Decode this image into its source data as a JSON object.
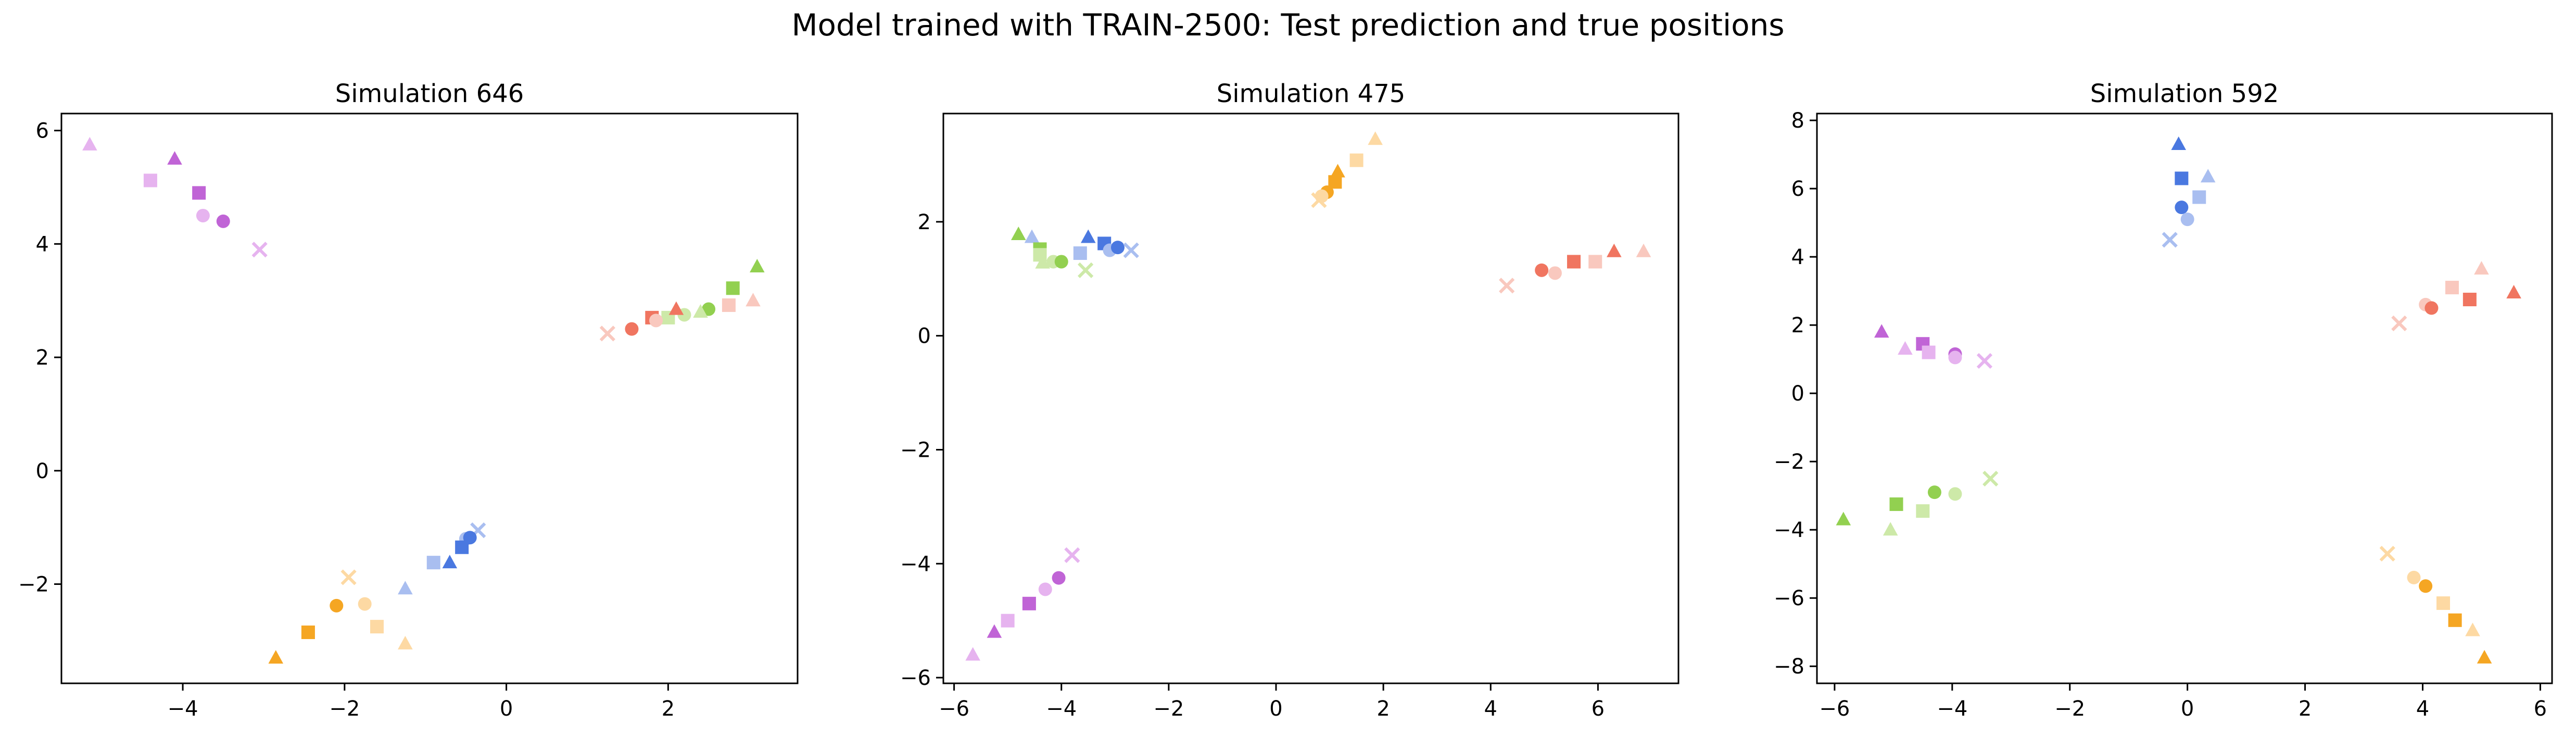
{
  "suptitle": "Model trained with TRAIN-2500: Test prediction and true positions",
  "colors": {
    "orange": {
      "dark": "#f5a623",
      "light": "#fdd9a3"
    },
    "blue": {
      "dark": "#4a78e0",
      "light": "#a9bef0"
    },
    "purple": {
      "dark": "#c064d6",
      "light": "#e6b3ef"
    },
    "green": {
      "dark": "#92d050",
      "light": "#cde9a8"
    },
    "red": {
      "dark": "#f07560",
      "light": "#f9c8be"
    }
  },
  "chart_data": [
    {
      "type": "scatter",
      "title": "Simulation 646",
      "xlim": [
        -5.5,
        3.6
      ],
      "ylim": [
        -3.75,
        6.3
      ],
      "xticks": [
        -4,
        -2,
        0,
        2
      ],
      "yticks": [
        -2,
        0,
        2,
        4,
        6
      ],
      "series": [
        {
          "color": "orange",
          "points": [
            {
              "m": "x",
              "s": "light",
              "x": -1.95,
              "y": -1.88
            },
            {
              "m": "o",
              "s": "light",
              "x": -1.75,
              "y": -2.35
            },
            {
              "m": "o",
              "s": "dark",
              "x": -2.1,
              "y": -2.38
            },
            {
              "m": "s",
              "s": "light",
              "x": -1.6,
              "y": -2.75
            },
            {
              "m": "s",
              "s": "dark",
              "x": -2.45,
              "y": -2.85
            },
            {
              "m": "^",
              "s": "light",
              "x": -1.25,
              "y": -3.05
            },
            {
              "m": "^",
              "s": "dark",
              "x": -2.85,
              "y": -3.3
            }
          ]
        },
        {
          "color": "blue",
          "points": [
            {
              "m": "x",
              "s": "light",
              "x": -0.35,
              "y": -1.05
            },
            {
              "m": "o",
              "s": "light",
              "x": -0.5,
              "y": -1.2
            },
            {
              "m": "o",
              "s": "dark",
              "x": -0.45,
              "y": -1.18
            },
            {
              "m": "s",
              "s": "dark",
              "x": -0.55,
              "y": -1.35
            },
            {
              "m": "s",
              "s": "light",
              "x": -0.9,
              "y": -1.62
            },
            {
              "m": "^",
              "s": "dark",
              "x": -0.7,
              "y": -1.62
            },
            {
              "m": "^",
              "s": "light",
              "x": -1.25,
              "y": -2.08
            }
          ]
        },
        {
          "color": "purple",
          "points": [
            {
              "m": "^",
              "s": "light",
              "x": -5.15,
              "y": 5.75
            },
            {
              "m": "^",
              "s": "dark",
              "x": -4.1,
              "y": 5.5
            },
            {
              "m": "s",
              "s": "light",
              "x": -4.4,
              "y": 5.12
            },
            {
              "m": "s",
              "s": "dark",
              "x": -3.8,
              "y": 4.9
            },
            {
              "m": "o",
              "s": "light",
              "x": -3.75,
              "y": 4.5
            },
            {
              "m": "o",
              "s": "dark",
              "x": -3.5,
              "y": 4.4
            },
            {
              "m": "x",
              "s": "light",
              "x": -3.05,
              "y": 3.9
            }
          ]
        },
        {
          "color": "green",
          "points": [
            {
              "m": "^",
              "s": "dark",
              "x": 3.1,
              "y": 3.6
            },
            {
              "m": "s",
              "s": "dark",
              "x": 2.8,
              "y": 3.22
            },
            {
              "m": "o",
              "s": "dark",
              "x": 2.5,
              "y": 2.85
            },
            {
              "m": "^",
              "s": "light",
              "x": 2.4,
              "y": 2.8
            },
            {
              "m": "o",
              "s": "light",
              "x": 2.2,
              "y": 2.75
            },
            {
              "m": "s",
              "s": "light",
              "x": 2.0,
              "y": 2.7
            }
          ]
        },
        {
          "color": "red",
          "points": [
            {
              "m": "^",
              "s": "light",
              "x": 3.05,
              "y": 3.0
            },
            {
              "m": "s",
              "s": "light",
              "x": 2.75,
              "y": 2.92
            },
            {
              "m": "^",
              "s": "dark",
              "x": 2.1,
              "y": 2.85
            },
            {
              "m": "s",
              "s": "dark",
              "x": 1.8,
              "y": 2.7
            },
            {
              "m": "o",
              "s": "light",
              "x": 1.85,
              "y": 2.65
            },
            {
              "m": "o",
              "s": "dark",
              "x": 1.55,
              "y": 2.5
            },
            {
              "m": "x",
              "s": "light",
              "x": 1.25,
              "y": 2.42
            }
          ]
        }
      ]
    },
    {
      "type": "scatter",
      "title": "Simulation 475",
      "xlim": [
        -6.2,
        7.5
      ],
      "ylim": [
        -6.1,
        3.9
      ],
      "xticks": [
        -6,
        -4,
        -2,
        0,
        2,
        4,
        6
      ],
      "yticks": [
        -6,
        -4,
        -2,
        0,
        2
      ],
      "series": [
        {
          "color": "orange",
          "points": [
            {
              "m": "^",
              "s": "light",
              "x": 1.85,
              "y": 3.45
            },
            {
              "m": "s",
              "s": "light",
              "x": 1.5,
              "y": 3.08
            },
            {
              "m": "^",
              "s": "dark",
              "x": 1.15,
              "y": 2.88
            },
            {
              "m": "s",
              "s": "dark",
              "x": 1.1,
              "y": 2.7
            },
            {
              "m": "o",
              "s": "dark",
              "x": 0.95,
              "y": 2.52
            },
            {
              "m": "o",
              "s": "light",
              "x": 0.85,
              "y": 2.45
            },
            {
              "m": "x",
              "s": "light",
              "x": 0.8,
              "y": 2.38
            }
          ]
        },
        {
          "color": "blue",
          "points": [
            {
              "m": "^",
              "s": "light",
              "x": -4.55,
              "y": 1.73
            },
            {
              "m": "^",
              "s": "dark",
              "x": -3.5,
              "y": 1.73
            },
            {
              "m": "s",
              "s": "dark",
              "x": -3.2,
              "y": 1.62
            },
            {
              "m": "s",
              "s": "light",
              "x": -3.65,
              "y": 1.45
            },
            {
              "m": "o",
              "s": "light",
              "x": -3.1,
              "y": 1.5
            },
            {
              "m": "o",
              "s": "dark",
              "x": -2.95,
              "y": 1.55
            },
            {
              "m": "x",
              "s": "light",
              "x": -2.7,
              "y": 1.5
            }
          ]
        },
        {
          "color": "green",
          "points": [
            {
              "m": "^",
              "s": "dark",
              "x": -4.8,
              "y": 1.78
            },
            {
              "m": "s",
              "s": "dark",
              "x": -4.4,
              "y": 1.52
            },
            {
              "m": "s",
              "s": "light",
              "x": -4.4,
              "y": 1.42
            },
            {
              "m": "^",
              "s": "light",
              "x": -4.35,
              "y": 1.28
            },
            {
              "m": "o",
              "s": "light",
              "x": -4.15,
              "y": 1.3
            },
            {
              "m": "o",
              "s": "dark",
              "x": -4.0,
              "y": 1.3
            },
            {
              "m": "x",
              "s": "light",
              "x": -3.55,
              "y": 1.15
            }
          ]
        },
        {
          "color": "red",
          "points": [
            {
              "m": "^",
              "s": "light",
              "x": 6.85,
              "y": 1.48
            },
            {
              "m": "^",
              "s": "dark",
              "x": 6.3,
              "y": 1.48
            },
            {
              "m": "s",
              "s": "light",
              "x": 5.95,
              "y": 1.3
            },
            {
              "m": "s",
              "s": "dark",
              "x": 5.55,
              "y": 1.3
            },
            {
              "m": "o",
              "s": "light",
              "x": 5.2,
              "y": 1.1
            },
            {
              "m": "o",
              "s": "dark",
              "x": 4.95,
              "y": 1.15
            },
            {
              "m": "x",
              "s": "light",
              "x": 4.3,
              "y": 0.88
            }
          ]
        },
        {
          "color": "purple",
          "points": [
            {
              "m": "x",
              "s": "light",
              "x": -3.8,
              "y": -3.85
            },
            {
              "m": "o",
              "s": "dark",
              "x": -4.05,
              "y": -4.25
            },
            {
              "m": "o",
              "s": "light",
              "x": -4.3,
              "y": -4.45
            },
            {
              "m": "s",
              "s": "dark",
              "x": -4.6,
              "y": -4.7
            },
            {
              "m": "s",
              "s": "light",
              "x": -5.0,
              "y": -5.0
            },
            {
              "m": "^",
              "s": "dark",
              "x": -5.25,
              "y": -5.2
            },
            {
              "m": "^",
              "s": "light",
              "x": -5.65,
              "y": -5.6
            }
          ]
        }
      ]
    },
    {
      "type": "scatter",
      "title": "Simulation 592",
      "xlim": [
        -6.3,
        6.2
      ],
      "ylim": [
        -8.5,
        8.2
      ],
      "xticks": [
        -6,
        -4,
        -2,
        0,
        2,
        4,
        6
      ],
      "yticks": [
        -8,
        -6,
        -4,
        -2,
        0,
        2,
        4,
        6,
        8
      ],
      "series": [
        {
          "color": "blue",
          "points": [
            {
              "m": "^",
              "s": "dark",
              "x": -0.15,
              "y": 7.3
            },
            {
              "m": "^",
              "s": "light",
              "x": 0.35,
              "y": 6.35
            },
            {
              "m": "s",
              "s": "dark",
              "x": -0.1,
              "y": 6.3
            },
            {
              "m": "s",
              "s": "light",
              "x": 0.2,
              "y": 5.75
            },
            {
              "m": "o",
              "s": "dark",
              "x": -0.1,
              "y": 5.45
            },
            {
              "m": "o",
              "s": "light",
              "x": 0.0,
              "y": 5.1
            },
            {
              "m": "x",
              "s": "light",
              "x": -0.3,
              "y": 4.5
            }
          ]
        },
        {
          "color": "red",
          "points": [
            {
              "m": "^",
              "s": "light",
              "x": 5.0,
              "y": 3.65
            },
            {
              "m": "s",
              "s": "light",
              "x": 4.5,
              "y": 3.1
            },
            {
              "m": "^",
              "s": "dark",
              "x": 5.55,
              "y": 2.95
            },
            {
              "m": "s",
              "s": "dark",
              "x": 4.8,
              "y": 2.75
            },
            {
              "m": "o",
              "s": "light",
              "x": 4.05,
              "y": 2.6
            },
            {
              "m": "o",
              "s": "dark",
              "x": 4.15,
              "y": 2.5
            },
            {
              "m": "x",
              "s": "light",
              "x": 3.6,
              "y": 2.05
            }
          ]
        },
        {
          "color": "purple",
          "points": [
            {
              "m": "^",
              "s": "dark",
              "x": -5.2,
              "y": 1.8
            },
            {
              "m": "s",
              "s": "dark",
              "x": -4.5,
              "y": 1.45
            },
            {
              "m": "^",
              "s": "light",
              "x": -4.8,
              "y": 1.3
            },
            {
              "m": "s",
              "s": "light",
              "x": -4.4,
              "y": 1.2
            },
            {
              "m": "o",
              "s": "dark",
              "x": -3.95,
              "y": 1.15
            },
            {
              "m": "o",
              "s": "light",
              "x": -3.95,
              "y": 1.05
            },
            {
              "m": "x",
              "s": "light",
              "x": -3.45,
              "y": 0.95
            }
          ]
        },
        {
          "color": "green",
          "points": [
            {
              "m": "x",
              "s": "light",
              "x": -3.35,
              "y": -2.5
            },
            {
              "m": "o",
              "s": "dark",
              "x": -4.3,
              "y": -2.9
            },
            {
              "m": "o",
              "s": "light",
              "x": -3.95,
              "y": -2.95
            },
            {
              "m": "s",
              "s": "dark",
              "x": -4.95,
              "y": -3.25
            },
            {
              "m": "s",
              "s": "light",
              "x": -4.5,
              "y": -3.45
            },
            {
              "m": "^",
              "s": "dark",
              "x": -5.85,
              "y": -3.7
            },
            {
              "m": "^",
              "s": "light",
              "x": -5.05,
              "y": -4.0
            }
          ]
        },
        {
          "color": "orange",
          "points": [
            {
              "m": "x",
              "s": "light",
              "x": 3.4,
              "y": -4.7
            },
            {
              "m": "o",
              "s": "light",
              "x": 3.85,
              "y": -5.4
            },
            {
              "m": "o",
              "s": "dark",
              "x": 4.05,
              "y": -5.65
            },
            {
              "m": "s",
              "s": "light",
              "x": 4.35,
              "y": -6.15
            },
            {
              "m": "s",
              "s": "dark",
              "x": 4.55,
              "y": -6.65
            },
            {
              "m": "^",
              "s": "light",
              "x": 4.85,
              "y": -6.95
            },
            {
              "m": "^",
              "s": "dark",
              "x": 5.05,
              "y": -7.75
            }
          ]
        }
      ]
    }
  ]
}
